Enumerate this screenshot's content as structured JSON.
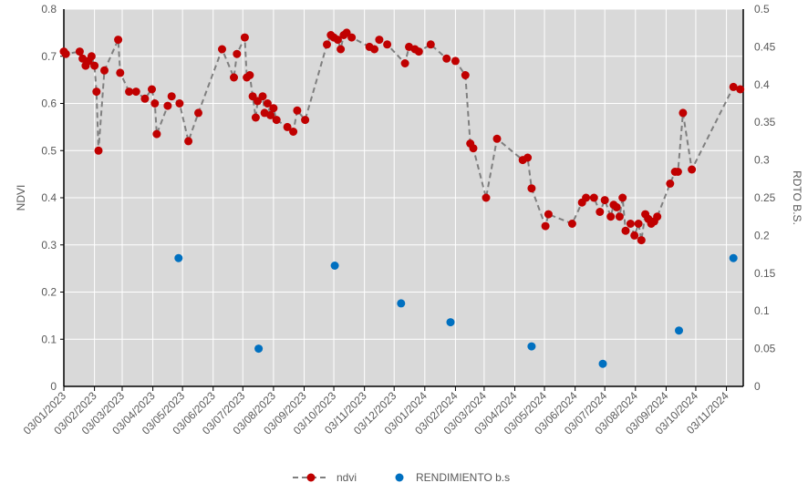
{
  "chart_data": {
    "type": "line",
    "title": "",
    "xlabel": "",
    "ylabel": "NDVI",
    "y2label": "RDTO B.S.",
    "ylim": [
      0,
      0.8
    ],
    "y2lim": [
      0,
      0.5
    ],
    "yticks": [
      "0",
      "0.1",
      "0.2",
      "0.3",
      "0.4",
      "0.5",
      "0.6",
      "0.7",
      "0.8"
    ],
    "y2ticks": [
      "0",
      "0.05",
      "0.1",
      "0.15",
      "0.2",
      "0.25",
      "0.3",
      "0.35",
      "0.4",
      "0.45",
      "0.5"
    ],
    "xticks": [
      "03/01/2023",
      "03/02/2023",
      "03/03/2023",
      "03/04/2023",
      "03/05/2023",
      "03/06/2023",
      "03/07/2023",
      "03/08/2023",
      "03/09/2023",
      "03/10/2023",
      "03/11/2023",
      "03/12/2023",
      "03/01/2024",
      "03/02/2024",
      "03/03/2024",
      "03/04/2024",
      "03/05/2024",
      "03/06/2024",
      "03/07/2024",
      "03/08/2024",
      "03/09/2024",
      "03/10/2024",
      "03/11/2024"
    ],
    "xrange": [
      "2023-01-03",
      "2024-11-20"
    ],
    "grid": true,
    "legend_position": "bottom",
    "series": [
      {
        "name": "ndvi",
        "style": "dashed-line-markers",
        "color": "#c00000",
        "line_color": "#7f7f7f",
        "points": [
          [
            "2023-01-03",
            0.71
          ],
          [
            "2023-01-05",
            0.705
          ],
          [
            "2023-01-19",
            0.71
          ],
          [
            "2023-01-22",
            0.695
          ],
          [
            "2023-01-25",
            0.68
          ],
          [
            "2023-01-28",
            0.69
          ],
          [
            "2023-01-31",
            0.7
          ],
          [
            "2023-02-03",
            0.68
          ],
          [
            "2023-02-05",
            0.625
          ],
          [
            "2023-02-07",
            0.5
          ],
          [
            "2023-02-13",
            0.67
          ],
          [
            "2023-02-27",
            0.735
          ],
          [
            "2023-03-01",
            0.665
          ],
          [
            "2023-03-10",
            0.625
          ],
          [
            "2023-03-17",
            0.625
          ],
          [
            "2023-03-26",
            0.61
          ],
          [
            "2023-04-02",
            0.63
          ],
          [
            "2023-04-05",
            0.6
          ],
          [
            "2023-04-07",
            0.535
          ],
          [
            "2023-04-18",
            0.595
          ],
          [
            "2023-04-22",
            0.615
          ],
          [
            "2023-04-30",
            0.6
          ],
          [
            "2023-05-09",
            0.52
          ],
          [
            "2023-05-19",
            0.58
          ],
          [
            "2023-06-12",
            0.715
          ],
          [
            "2023-06-24",
            0.655
          ],
          [
            "2023-06-27",
            0.705
          ],
          [
            "2023-07-05",
            0.74
          ],
          [
            "2023-07-07",
            0.655
          ],
          [
            "2023-07-10",
            0.66
          ],
          [
            "2023-07-13",
            0.615
          ],
          [
            "2023-07-16",
            0.57
          ],
          [
            "2023-07-18",
            0.605
          ],
          [
            "2023-07-23",
            0.615
          ],
          [
            "2023-07-25",
            0.58
          ],
          [
            "2023-07-28",
            0.6
          ],
          [
            "2023-07-31",
            0.575
          ],
          [
            "2023-08-03",
            0.59
          ],
          [
            "2023-08-06",
            0.565
          ],
          [
            "2023-08-17",
            0.55
          ],
          [
            "2023-08-23",
            0.54
          ],
          [
            "2023-08-27",
            0.585
          ],
          [
            "2023-09-04",
            0.565
          ],
          [
            "2023-09-26",
            0.725
          ],
          [
            "2023-09-30",
            0.745
          ],
          [
            "2023-10-03",
            0.74
          ],
          [
            "2023-10-07",
            0.735
          ],
          [
            "2023-10-10",
            0.715
          ],
          [
            "2023-10-13",
            0.745
          ],
          [
            "2023-10-16",
            0.75
          ],
          [
            "2023-10-21",
            0.74
          ],
          [
            "2023-11-08",
            0.72
          ],
          [
            "2023-11-13",
            0.715
          ],
          [
            "2023-11-18",
            0.735
          ],
          [
            "2023-11-26",
            0.725
          ],
          [
            "2023-12-14",
            0.685
          ],
          [
            "2023-12-18",
            0.72
          ],
          [
            "2023-12-24",
            0.715
          ],
          [
            "2023-12-28",
            0.71
          ],
          [
            "2024-01-09",
            0.725
          ],
          [
            "2024-01-25",
            0.695
          ],
          [
            "2024-02-03",
            0.69
          ],
          [
            "2024-02-13",
            0.66
          ],
          [
            "2024-02-18",
            0.515
          ],
          [
            "2024-02-21",
            0.505
          ],
          [
            "2024-03-05",
            0.4
          ],
          [
            "2024-03-16",
            0.525
          ],
          [
            "2024-04-11",
            0.48
          ],
          [
            "2024-04-16",
            0.485
          ],
          [
            "2024-04-20",
            0.42
          ],
          [
            "2024-05-04",
            0.34
          ],
          [
            "2024-05-07",
            0.365
          ],
          [
            "2024-05-31",
            0.345
          ],
          [
            "2024-06-10",
            0.39
          ],
          [
            "2024-06-14",
            0.4
          ],
          [
            "2024-06-22",
            0.4
          ],
          [
            "2024-06-28",
            0.37
          ],
          [
            "2024-07-03",
            0.395
          ],
          [
            "2024-07-09",
            0.36
          ],
          [
            "2024-07-12",
            0.385
          ],
          [
            "2024-07-15",
            0.38
          ],
          [
            "2024-07-18",
            0.36
          ],
          [
            "2024-07-21",
            0.4
          ],
          [
            "2024-07-24",
            0.33
          ],
          [
            "2024-07-29",
            0.345
          ],
          [
            "2024-08-02",
            0.32
          ],
          [
            "2024-08-06",
            0.345
          ],
          [
            "2024-08-09",
            0.31
          ],
          [
            "2024-08-13",
            0.365
          ],
          [
            "2024-08-16",
            0.355
          ],
          [
            "2024-08-19",
            0.345
          ],
          [
            "2024-08-22",
            0.35
          ],
          [
            "2024-08-25",
            0.36
          ],
          [
            "2024-09-07",
            0.43
          ],
          [
            "2024-09-12",
            0.455
          ],
          [
            "2024-09-15",
            0.455
          ],
          [
            "2024-09-20",
            0.58
          ],
          [
            "2024-09-29",
            0.46
          ],
          [
            "2024-11-10",
            0.635
          ],
          [
            "2024-11-17",
            0.63
          ]
        ]
      },
      {
        "name": "RENDIMIENTO b.s",
        "style": "markers",
        "axis": "right",
        "color": "#0070c0",
        "points": [
          [
            "2023-04-29",
            0.17
          ],
          [
            "2023-07-19",
            0.05
          ],
          [
            "2023-10-04",
            0.16
          ],
          [
            "2023-12-10",
            0.11
          ],
          [
            "2024-01-29",
            0.085
          ],
          [
            "2024-04-20",
            0.053
          ],
          [
            "2024-07-01",
            0.03
          ],
          [
            "2024-09-16",
            0.074
          ],
          [
            "2024-11-10",
            0.17
          ]
        ]
      }
    ]
  }
}
